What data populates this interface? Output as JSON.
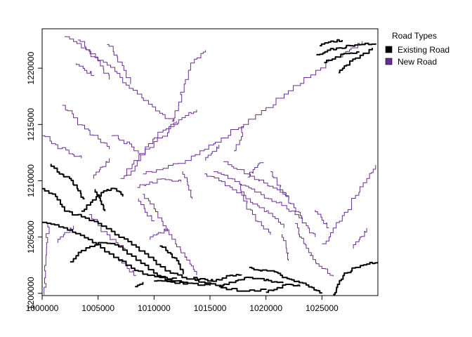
{
  "legend": {
    "title": "Road Types",
    "items": [
      {
        "label": "Existing Road",
        "color": "#000000"
      },
      {
        "label": "New Road",
        "color": "#6a2c91"
      }
    ]
  },
  "axes": {
    "x_range": [
      1000000,
      1030000
    ],
    "y_range": [
      1199800,
      1223500
    ],
    "x_ticks": [
      {
        "value": 1000000,
        "label": "1000000"
      },
      {
        "value": 1005000,
        "label": "1005000"
      },
      {
        "value": 1010000,
        "label": "1010000"
      },
      {
        "value": 1015000,
        "label": "1015000"
      },
      {
        "value": 1020000,
        "label": "1020000"
      },
      {
        "value": 1025000,
        "label": "1025000"
      }
    ],
    "y_ticks": [
      {
        "value": 1200000,
        "label": "1200000"
      },
      {
        "value": 1205000,
        "label": "1205000"
      },
      {
        "value": 1210000,
        "label": "1210000"
      },
      {
        "value": 1215000,
        "label": "1215000"
      },
      {
        "value": 1220000,
        "label": "1220000"
      }
    ]
  },
  "roads": {
    "existing": [
      [
        [
          1000000,
          1209300
        ],
        [
          1001200,
          1208600
        ],
        [
          1002000,
          1207300
        ],
        [
          1003500,
          1206800
        ],
        [
          1005000,
          1206200
        ],
        [
          1006500,
          1205200
        ],
        [
          1008000,
          1204300
        ],
        [
          1009500,
          1203200
        ],
        [
          1011000,
          1202000
        ],
        [
          1012500,
          1201400
        ],
        [
          1014000,
          1201000
        ],
        [
          1016000,
          1200500
        ],
        [
          1018000,
          1200200
        ],
        [
          1020000,
          1200300
        ]
      ],
      [
        [
          1000000,
          1206300
        ],
        [
          1001500,
          1205900
        ],
        [
          1003000,
          1205300
        ],
        [
          1004500,
          1204500
        ],
        [
          1006000,
          1203500
        ],
        [
          1007500,
          1202500
        ],
        [
          1009000,
          1201700
        ],
        [
          1010500,
          1201400
        ],
        [
          1012000,
          1201300
        ]
      ],
      [
        [
          1002500,
          1202800
        ],
        [
          1003500,
          1203800
        ],
        [
          1005000,
          1204500
        ],
        [
          1006500,
          1204300
        ],
        [
          1008000,
          1203300
        ],
        [
          1009500,
          1202100
        ],
        [
          1011000,
          1201200
        ],
        [
          1013000,
          1200900
        ],
        [
          1015000,
          1200700
        ]
      ],
      [
        [
          1003500,
          1207300
        ],
        [
          1004500,
          1208300
        ],
        [
          1005500,
          1209100
        ],
        [
          1006500,
          1209300
        ],
        [
          1007200,
          1208600
        ]
      ],
      [
        [
          1004700,
          1209200
        ],
        [
          1005200,
          1208200
        ],
        [
          1005600,
          1207300
        ]
      ],
      [
        [
          1003800,
          1208400
        ],
        [
          1003200,
          1209300
        ],
        [
          1002600,
          1210200
        ],
        [
          1001800,
          1210600
        ],
        [
          1000800,
          1211500
        ]
      ],
      [
        [
          1010500,
          1204200
        ],
        [
          1011500,
          1203500
        ],
        [
          1012200,
          1202600
        ],
        [
          1012600,
          1201700
        ]
      ],
      [
        [
          1008300,
          1200600
        ],
        [
          1009000,
          1201000
        ]
      ],
      [
        [
          1010000,
          1201100
        ],
        [
          1011500,
          1201000
        ],
        [
          1013000,
          1200900
        ]
      ],
      [
        [
          1013500,
          1201400
        ],
        [
          1014800,
          1201100
        ],
        [
          1015800,
          1201200
        ],
        [
          1016800,
          1201600
        ],
        [
          1017800,
          1201600
        ]
      ],
      [
        [
          1015800,
          1200600
        ],
        [
          1016500,
          1200800
        ],
        [
          1017500,
          1201200
        ],
        [
          1018500,
          1201400
        ],
        [
          1019500,
          1201300
        ],
        [
          1020500,
          1201000
        ],
        [
          1021500,
          1200900
        ]
      ],
      [
        [
          1018500,
          1202300
        ],
        [
          1019500,
          1202000
        ],
        [
          1020500,
          1202000
        ],
        [
          1021300,
          1201600
        ],
        [
          1022300,
          1201200
        ],
        [
          1023300,
          1200900
        ],
        [
          1024300,
          1200300
        ],
        [
          1025000,
          1200000
        ]
      ],
      [
        [
          1020000,
          1200100
        ],
        [
          1021000,
          1200500
        ],
        [
          1022000,
          1200800
        ],
        [
          1023000,
          1200600
        ]
      ],
      [
        [
          1026000,
          1199900
        ],
        [
          1026400,
          1200800
        ],
        [
          1027000,
          1201800
        ],
        [
          1028000,
          1202300
        ],
        [
          1029000,
          1202600
        ],
        [
          1030000,
          1202800
        ]
      ],
      [
        [
          1024500,
          1221200
        ],
        [
          1025500,
          1221600
        ],
        [
          1026500,
          1221800
        ],
        [
          1027500,
          1222000
        ],
        [
          1028500,
          1222100
        ],
        [
          1029800,
          1222200
        ]
      ],
      [
        [
          1025200,
          1220500
        ],
        [
          1026200,
          1221000
        ],
        [
          1027200,
          1221300
        ],
        [
          1028300,
          1221400
        ]
      ],
      [
        [
          1026500,
          1219600
        ],
        [
          1027000,
          1220200
        ],
        [
          1028000,
          1220900
        ],
        [
          1029500,
          1221800
        ]
      ],
      [
        [
          1024800,
          1222000
        ],
        [
          1025800,
          1222400
        ],
        [
          1026800,
          1222500
        ]
      ]
    ],
    "new": [
      [
        [
          1002000,
          1222800
        ],
        [
          1003500,
          1221800
        ],
        [
          1005000,
          1220700
        ],
        [
          1006500,
          1219700
        ],
        [
          1007500,
          1218500
        ],
        [
          1008500,
          1217700
        ],
        [
          1009500,
          1216800
        ],
        [
          1010500,
          1216000
        ],
        [
          1011700,
          1215300
        ]
      ],
      [
        [
          1003200,
          1222500
        ],
        [
          1004200,
          1221500
        ],
        [
          1005200,
          1220200
        ],
        [
          1006000,
          1219000
        ]
      ],
      [
        [
          1005800,
          1222100
        ],
        [
          1006700,
          1221000
        ],
        [
          1007300,
          1219800
        ],
        [
          1007900,
          1218600
        ]
      ],
      [
        [
          1007500,
          1210500
        ],
        [
          1008800,
          1212300
        ],
        [
          1010300,
          1213800
        ],
        [
          1011800,
          1215000
        ],
        [
          1012800,
          1215800
        ],
        [
          1013800,
          1216300
        ]
      ],
      [
        [
          1007000,
          1210200
        ],
        [
          1008200,
          1211800
        ],
        [
          1009500,
          1213300
        ],
        [
          1010800,
          1214500
        ],
        [
          1012000,
          1215300
        ]
      ],
      [
        [
          1009000,
          1210600
        ],
        [
          1010800,
          1211100
        ],
        [
          1012800,
          1211800
        ],
        [
          1014500,
          1212800
        ],
        [
          1016000,
          1213800
        ],
        [
          1018000,
          1215000
        ],
        [
          1020000,
          1216500
        ],
        [
          1022000,
          1218000
        ],
        [
          1024000,
          1219400
        ],
        [
          1025600,
          1220800
        ]
      ],
      [
        [
          1011600,
          1215300
        ],
        [
          1012200,
          1217000
        ],
        [
          1012800,
          1219000
        ],
        [
          1013600,
          1220800
        ],
        [
          1014600,
          1221600
        ]
      ],
      [
        [
          1001800,
          1216700
        ],
        [
          1002800,
          1215600
        ],
        [
          1003800,
          1214600
        ],
        [
          1005000,
          1213700
        ],
        [
          1006000,
          1212800
        ]
      ],
      [
        [
          1000000,
          1214000
        ],
        [
          1001200,
          1213200
        ],
        [
          1002400,
          1212400
        ],
        [
          1003500,
          1212000
        ]
      ],
      [
        [
          1006200,
          1214000
        ],
        [
          1007200,
          1213600
        ],
        [
          1008000,
          1213000
        ],
        [
          1008600,
          1212400
        ]
      ],
      [
        [
          1008500,
          1209400
        ],
        [
          1009600,
          1209900
        ],
        [
          1011000,
          1210100
        ],
        [
          1012400,
          1209900
        ]
      ],
      [
        [
          1009000,
          1208800
        ],
        [
          1010000,
          1207500
        ],
        [
          1010800,
          1206000
        ],
        [
          1011600,
          1204800
        ],
        [
          1012400,
          1203600
        ],
        [
          1013200,
          1202600
        ],
        [
          1013800,
          1201600
        ]
      ],
      [
        [
          1012600,
          1210800
        ],
        [
          1013000,
          1209600
        ],
        [
          1013400,
          1208400
        ]
      ],
      [
        [
          1014500,
          1210600
        ],
        [
          1015800,
          1210000
        ],
        [
          1017000,
          1209200
        ],
        [
          1018200,
          1208400
        ],
        [
          1019400,
          1207600
        ],
        [
          1020600,
          1206800
        ],
        [
          1021600,
          1205800
        ]
      ],
      [
        [
          1015300,
          1210800
        ],
        [
          1016600,
          1210200
        ],
        [
          1017800,
          1209600
        ],
        [
          1019000,
          1209000
        ],
        [
          1020200,
          1208400
        ],
        [
          1021400,
          1207800
        ],
        [
          1022600,
          1207000
        ],
        [
          1023600,
          1206000
        ],
        [
          1024400,
          1205000
        ]
      ],
      [
        [
          1016200,
          1211700
        ],
        [
          1017400,
          1211000
        ],
        [
          1018600,
          1210400
        ],
        [
          1019800,
          1209800
        ],
        [
          1021000,
          1209200
        ],
        [
          1022000,
          1208600
        ]
      ],
      [
        [
          1017600,
          1209700
        ],
        [
          1018000,
          1208200
        ],
        [
          1018800,
          1207000
        ],
        [
          1019600,
          1206000
        ],
        [
          1020400,
          1205200
        ]
      ],
      [
        [
          1020400,
          1210800
        ],
        [
          1021000,
          1209600
        ],
        [
          1021800,
          1208600
        ],
        [
          1022500,
          1207600
        ],
        [
          1023200,
          1206600
        ]
      ],
      [
        [
          1022600,
          1206200
        ],
        [
          1023000,
          1205000
        ],
        [
          1023600,
          1204000
        ],
        [
          1024200,
          1203000
        ],
        [
          1025000,
          1202200
        ],
        [
          1026000,
          1201500
        ]
      ],
      [
        [
          1025000,
          1204400
        ],
        [
          1026000,
          1205800
        ],
        [
          1027000,
          1207200
        ],
        [
          1028000,
          1208700
        ],
        [
          1029000,
          1210200
        ],
        [
          1029800,
          1211400
        ]
      ],
      [
        [
          1024400,
          1207400
        ],
        [
          1025000,
          1206500
        ],
        [
          1025600,
          1205800
        ]
      ],
      [
        [
          1021500,
          1205200
        ],
        [
          1021800,
          1204000
        ],
        [
          1022000,
          1202900
        ]
      ],
      [
        [
          1004600,
          1210200
        ],
        [
          1005200,
          1211200
        ],
        [
          1006000,
          1212000
        ]
      ],
      [
        [
          1000200,
          1199900
        ],
        [
          1000300,
          1202000
        ],
        [
          1000400,
          1204500
        ],
        [
          1000500,
          1206200
        ]
      ],
      [
        [
          1001400,
          1204500
        ],
        [
          1002000,
          1205400
        ],
        [
          1002800,
          1206000
        ]
      ],
      [
        [
          1004200,
          1207000
        ],
        [
          1005000,
          1206000
        ],
        [
          1005800,
          1205200
        ],
        [
          1006600,
          1204500
        ],
        [
          1007400,
          1203800
        ]
      ],
      [
        [
          1006800,
          1203000
        ],
        [
          1007600,
          1202200
        ],
        [
          1008400,
          1201600
        ]
      ],
      [
        [
          1009600,
          1204800
        ],
        [
          1010400,
          1205400
        ],
        [
          1011200,
          1205800
        ]
      ],
      [
        [
          1014600,
          1211800
        ],
        [
          1015200,
          1212600
        ],
        [
          1015800,
          1213200
        ]
      ],
      [
        [
          1008600,
          1208400
        ],
        [
          1009200,
          1207200
        ],
        [
          1010000,
          1206400
        ]
      ],
      [
        [
          1027800,
          1204000
        ],
        [
          1028400,
          1205000
        ],
        [
          1029000,
          1205800
        ]
      ],
      [
        [
          1026800,
          1221000
        ],
        [
          1027600,
          1221800
        ],
        [
          1028600,
          1222400
        ]
      ],
      [
        [
          1018000,
          1214800
        ],
        [
          1017800,
          1213600
        ],
        [
          1017200,
          1212600
        ]
      ],
      [
        [
          1019800,
          1211600
        ],
        [
          1019000,
          1211000
        ],
        [
          1018400,
          1210300
        ]
      ],
      [
        [
          1003000,
          1220400
        ],
        [
          1003800,
          1219800
        ],
        [
          1004600,
          1219400
        ]
      ]
    ]
  }
}
